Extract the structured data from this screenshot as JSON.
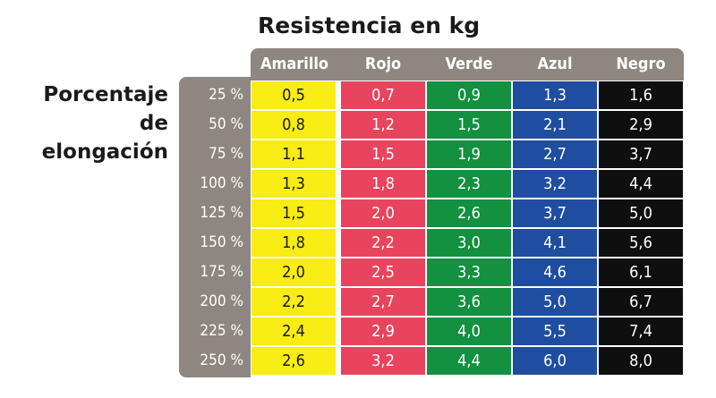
{
  "chart_data": {
    "type": "table",
    "title": "Resistencia en kg",
    "row_header_title": "Porcentaje de elongación",
    "columns": [
      {
        "name": "Amarillo",
        "color": "#f7ec13",
        "text_color": "#1a1a1a"
      },
      {
        "name": "Rojo",
        "color": "#e8445e",
        "text_color": "#ffffff"
      },
      {
        "name": "Verde",
        "color": "#139040",
        "text_color": "#ffffff"
      },
      {
        "name": "Azul",
        "color": "#1f4da0",
        "text_color": "#ffffff"
      },
      {
        "name": "Negro",
        "color": "#0f0f0f",
        "text_color": "#ffffff"
      }
    ],
    "rows": [
      {
        "label": "25 %",
        "values": [
          "0,5",
          "0,7",
          "0,9",
          "1,3",
          "1,6"
        ]
      },
      {
        "label": "50 %",
        "values": [
          "0,8",
          "1,2",
          "1,5",
          "2,1",
          "2,9"
        ]
      },
      {
        "label": "75 %",
        "values": [
          "1,1",
          "1,5",
          "1,9",
          "2,7",
          "3,7"
        ]
      },
      {
        "label": "100 %",
        "values": [
          "1,3",
          "1,8",
          "2,3",
          "3,2",
          "4,4"
        ]
      },
      {
        "label": "125 %",
        "values": [
          "1,5",
          "2,0",
          "2,6",
          "3,7",
          "5,0"
        ]
      },
      {
        "label": "150 %",
        "values": [
          "1,8",
          "2,2",
          "3,0",
          "4,1",
          "5,6"
        ]
      },
      {
        "label": "175 %",
        "values": [
          "2,0",
          "2,5",
          "3,3",
          "4,6",
          "6,1"
        ]
      },
      {
        "label": "200 %",
        "values": [
          "2,2",
          "2,7",
          "3,6",
          "5,0",
          "6,7"
        ]
      },
      {
        "label": "225 %",
        "values": [
          "2,4",
          "2,9",
          "4,0",
          "5,5",
          "7,4"
        ]
      },
      {
        "label": "250 %",
        "values": [
          "2,6",
          "3,2",
          "4,4",
          "6,0",
          "8,0"
        ]
      }
    ],
    "frame_color": "#8e8680"
  }
}
